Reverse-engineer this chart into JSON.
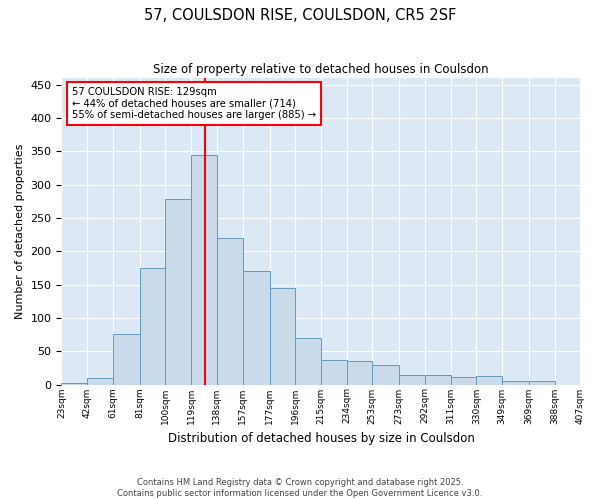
{
  "title_line1": "57, COULSDON RISE, COULSDON, CR5 2SF",
  "title_line2": "Size of property relative to detached houses in Coulsdon",
  "xlabel": "Distribution of detached houses by size in Coulsdon",
  "ylabel": "Number of detached properties",
  "bar_color": "#c9daea",
  "bar_edge_color": "#6699bb",
  "background_color": "#dce9f5",
  "grid_color": "#ffffff",
  "vline_x": 129,
  "vline_color": "red",
  "annotation_text": "57 COULSDON RISE: 129sqm\n← 44% of detached houses are smaller (714)\n55% of semi-detached houses are larger (885) →",
  "annotation_box_color": "white",
  "annotation_box_edge": "red",
  "bins": [
    23,
    42,
    61,
    81,
    100,
    119,
    138,
    157,
    177,
    196,
    215,
    234,
    253,
    273,
    292,
    311,
    330,
    349,
    369,
    388,
    407
  ],
  "counts": [
    2,
    10,
    76,
    175,
    278,
    345,
    220,
    170,
    145,
    70,
    37,
    35,
    30,
    15,
    15,
    12,
    13,
    6,
    6,
    0
  ],
  "tick_labels": [
    "23sqm",
    "42sqm",
    "61sqm",
    "81sqm",
    "100sqm",
    "119sqm",
    "138sqm",
    "157sqm",
    "177sqm",
    "196sqm",
    "215sqm",
    "234sqm",
    "253sqm",
    "273sqm",
    "292sqm",
    "311sqm",
    "330sqm",
    "349sqm",
    "369sqm",
    "388sqm",
    "407sqm"
  ],
  "ylim": [
    0,
    460
  ],
  "yticks": [
    0,
    50,
    100,
    150,
    200,
    250,
    300,
    350,
    400,
    450
  ],
  "footer_line1": "Contains HM Land Registry data © Crown copyright and database right 2025.",
  "footer_line2": "Contains public sector information licensed under the Open Government Licence v3.0."
}
